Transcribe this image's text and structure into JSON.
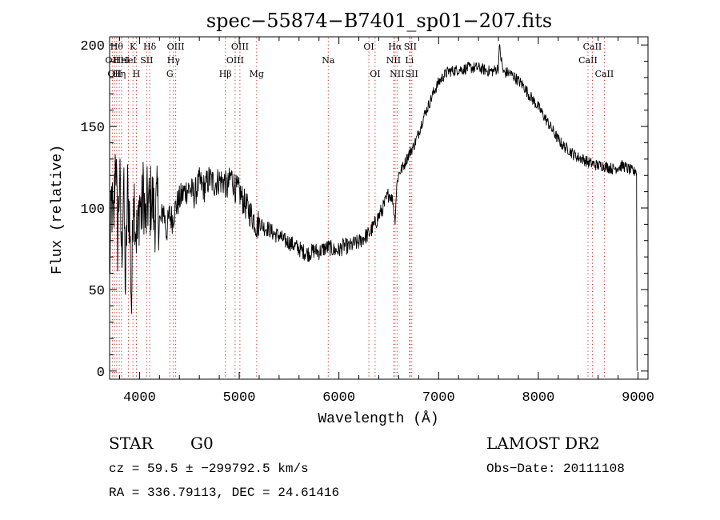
{
  "chart_data": {
    "type": "line",
    "title": "spec−55874−B7401_sp01−207.fits",
    "xlabel": "Wavelength (Å)",
    "ylabel": "Flux (relative)",
    "xlim": [
      3700,
      9100
    ],
    "ylim": [
      -5,
      205
    ],
    "xticks": [
      4000,
      5000,
      6000,
      7000,
      8000,
      9000
    ],
    "yticks": [
      0,
      50,
      100,
      150,
      200
    ],
    "grid": false,
    "series": [
      {
        "x": [
          3700,
          3720,
          3740,
          3760,
          3780,
          3800,
          3820,
          3840,
          3860,
          3880,
          3900,
          3920,
          3940,
          3960,
          3980,
          4000,
          4020,
          4040,
          4060,
          4080,
          4100,
          4120,
          4150,
          4180,
          4210,
          4240,
          4270,
          4300,
          4330,
          4360,
          4400,
          4450,
          4500,
          4550,
          4600,
          4650,
          4700,
          4750,
          4800,
          4850,
          4880,
          4920,
          4960,
          5000,
          5050,
          5100,
          5150,
          5180,
          5200,
          5250,
          5300,
          5350,
          5400,
          5450,
          5500,
          5550,
          5600,
          5650,
          5700,
          5750,
          5800,
          5850,
          5900,
          5950,
          6000,
          6050,
          6100,
          6150,
          6200,
          6250,
          6300,
          6350,
          6400,
          6450,
          6500,
          6540,
          6563,
          6580,
          6600,
          6650,
          6700,
          6750,
          6800,
          6850,
          6900,
          6950,
          7000,
          7050,
          7100,
          7150,
          7200,
          7250,
          7300,
          7350,
          7400,
          7450,
          7500,
          7550,
          7600,
          7605,
          7650,
          7700,
          7750,
          7800,
          7850,
          7900,
          7950,
          8000,
          8050,
          8100,
          8150,
          8200,
          8250,
          8300,
          8350,
          8400,
          8450,
          8500,
          8550,
          8600,
          8650,
          8700,
          8750,
          8800,
          8850,
          8900,
          8930,
          8960,
          8975,
          8980,
          8985
        ],
        "values": [
          60,
          105,
          85,
          140,
          80,
          120,
          70,
          115,
          50,
          110,
          95,
          40,
          118,
          90,
          80,
          105,
          95,
          112,
          88,
          105,
          100,
          108,
          95,
          103,
          90,
          100,
          85,
          96,
          93,
          100,
          105,
          110,
          112,
          108,
          116,
          112,
          118,
          115,
          117,
          116,
          112,
          120,
          112,
          110,
          103,
          98,
          93,
          88,
          92,
          88,
          87,
          84,
          83,
          80,
          79,
          77,
          75,
          73,
          72,
          74,
          73,
          75,
          76,
          74,
          74,
          77,
          76,
          78,
          79,
          82,
          84,
          89,
          95,
          101,
          109,
          105,
          92,
          114,
          121,
          126,
          133,
          138,
          146,
          156,
          163,
          171,
          177,
          181,
          184,
          184,
          185,
          185,
          186,
          186,
          186,
          185,
          184,
          184,
          186,
          200,
          183,
          183,
          181,
          178,
          175,
          170,
          166,
          162,
          157,
          152,
          147,
          142,
          138,
          136,
          133,
          131,
          130,
          128,
          127,
          126,
          126,
          125,
          124,
          125,
          126,
          124,
          123,
          122,
          124,
          123,
          121
        ]
      }
    ],
    "line_markers": [
      {
        "wavelength": 3727,
        "label": "OII",
        "row": 2
      },
      {
        "wavelength": 3750,
        "label": "OII",
        "row": 3
      },
      {
        "wavelength": 3771,
        "label": "Hθ",
        "row": 1
      },
      {
        "wavelength": 3797,
        "label": "Hη",
        "row": 3
      },
      {
        "wavelength": 3820,
        "label": "HeI",
        "row": 2
      },
      {
        "wavelength": 3889,
        "label": "HeI",
        "row": 2
      },
      {
        "wavelength": 3934,
        "label": "K",
        "row": 1
      },
      {
        "wavelength": 3969,
        "label": "H",
        "row": 3
      },
      {
        "wavelength": 4072,
        "label": "SII",
        "row": 2
      },
      {
        "wavelength": 4102,
        "label": "Hδ",
        "row": 1
      },
      {
        "wavelength": 4304,
        "label": "G",
        "row": 3
      },
      {
        "wavelength": 4341,
        "label": "Hγ",
        "row": 2
      },
      {
        "wavelength": 4363,
        "label": "OIII",
        "row": 1
      },
      {
        "wavelength": 4861,
        "label": "Hβ",
        "row": 3
      },
      {
        "wavelength": 4959,
        "label": "OIII",
        "row": 2
      },
      {
        "wavelength": 5007,
        "label": "OIII",
        "row": 1
      },
      {
        "wavelength": 5175,
        "label": "Mg",
        "row": 3
      },
      {
        "wavelength": 5893,
        "label": "Na",
        "row": 2
      },
      {
        "wavelength": 6300,
        "label": "OI",
        "row": 1
      },
      {
        "wavelength": 6363,
        "label": "OI",
        "row": 3
      },
      {
        "wavelength": 6548,
        "label": "NII",
        "row": 2
      },
      {
        "wavelength": 6563,
        "label": "Hα",
        "row": 1
      },
      {
        "wavelength": 6583,
        "label": "NII",
        "row": 3
      },
      {
        "wavelength": 6707,
        "label": "Li",
        "row": 2
      },
      {
        "wavelength": 6716,
        "label": "SII",
        "row": 1
      },
      {
        "wavelength": 6731,
        "label": "SII",
        "row": 3
      },
      {
        "wavelength": 8498,
        "label": "CaII",
        "row": 2
      },
      {
        "wavelength": 8542,
        "label": "CaII",
        "row": 1
      },
      {
        "wavelength": 8662,
        "label": "CaII",
        "row": 3
      }
    ]
  },
  "info": {
    "object_class": "STAR",
    "subclass": "G0",
    "survey": "LAMOST DR2",
    "velocity": "cz = 59.5 ± −299792.5 km/s",
    "obs_date": "Obs−Date: 20111108",
    "coords": "RA = 336.79113, DEC =  24.61416"
  }
}
